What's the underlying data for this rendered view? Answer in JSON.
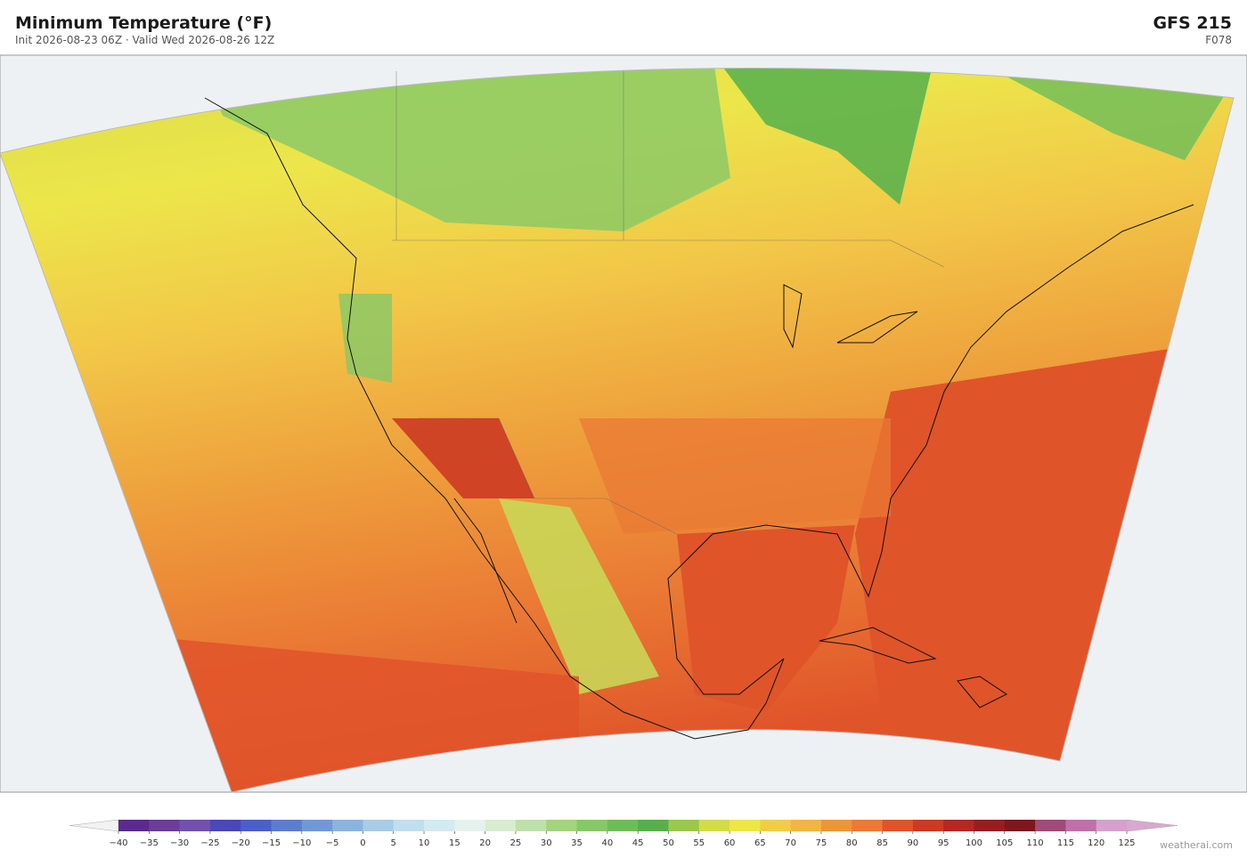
{
  "header": {
    "title": "Minimum Temperature  (°F)",
    "subtitle": "Init 2026-08-23 06Z  ·  Valid Wed 2026-08-26 12Z",
    "model": "GFS  215",
    "forecast_hour": "F078"
  },
  "colorbar": {
    "ticks": [
      {
        "value": -40,
        "label": "−40"
      },
      {
        "value": -35,
        "label": "−35"
      },
      {
        "value": -30,
        "label": "−30"
      },
      {
        "value": -25,
        "label": "−25"
      },
      {
        "value": -20,
        "label": "−20"
      },
      {
        "value": -15,
        "label": "−15"
      },
      {
        "value": -10,
        "label": "−10"
      },
      {
        "value": -5,
        "label": "−5"
      },
      0,
      5,
      10,
      15,
      20,
      25,
      30,
      35,
      40,
      45,
      50,
      55,
      60,
      65,
      70,
      75,
      80,
      85,
      90,
      95,
      100,
      105,
      110,
      115,
      120,
      125
    ],
    "colors": [
      "#5b2a8f",
      "#6a3d9a",
      "#7350b0",
      "#4a47b8",
      "#4b5fc8",
      "#5b7dd0",
      "#6f98d8",
      "#8ab4e0",
      "#a6cce8",
      "#bfdeee",
      "#d3eaf0",
      "#e4f2ee",
      "#d8ecd0",
      "#bfe0a8",
      "#a3d47e",
      "#86c868",
      "#6cbd5a",
      "#55b04c",
      "#9ac84a",
      "#d2dc48",
      "#ece64a",
      "#f2cc48",
      "#f2b442",
      "#ee953a",
      "#ea7a34",
      "#e0542a",
      "#cc3a24",
      "#b42822",
      "#961e20",
      "#7e161c",
      "#a04a78",
      "#c070a8",
      "#d6a0cc"
    ],
    "under_color": "#f2f2f2",
    "over_color": "#d8a8d0"
  },
  "footer": {
    "credit": "weatherai.com"
  }
}
